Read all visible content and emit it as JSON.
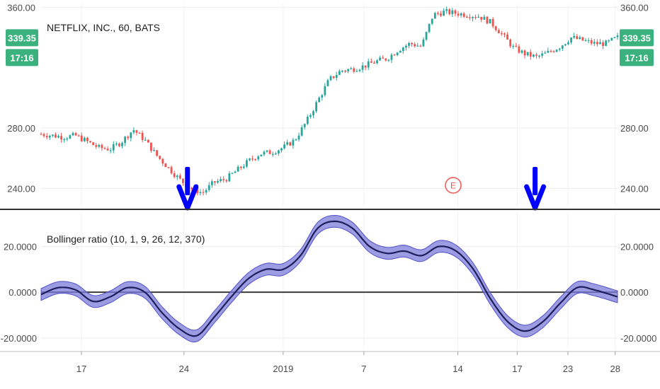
{
  "chart_data": [
    {
      "type": "candlestick",
      "title": "NETFLIX, INC., 60, BATS",
      "ylim": [
        228,
        362
      ],
      "y_ticks": [
        "360.00",
        "280.00",
        "240.00"
      ],
      "y_tick_values": [
        360,
        280,
        240
      ],
      "price_label": "339.35",
      "time_label": "17:16",
      "price_value": 339.35,
      "earnings_marker": "E",
      "colors": {
        "up": "#26a69a",
        "down": "#ef5350",
        "tag": "#3bb27d",
        "signal": "#0000ff"
      },
      "trend": {
        "x": [
          0,
          0.02,
          0.04,
          0.06,
          0.08,
          0.1,
          0.12,
          0.14,
          0.16,
          0.18,
          0.2,
          0.22,
          0.24,
          0.26,
          0.28,
          0.3,
          0.32,
          0.34,
          0.36,
          0.38,
          0.4,
          0.42,
          0.44,
          0.46,
          0.48,
          0.5,
          0.52,
          0.54,
          0.56,
          0.58,
          0.6,
          0.62,
          0.64,
          0.66,
          0.68,
          0.7,
          0.72,
          0.74,
          0.76,
          0.78,
          0.8,
          0.82,
          0.84,
          0.86,
          0.88,
          0.9,
          0.92,
          0.94,
          0.96,
          0.98,
          1.0
        ],
        "close": [
          276,
          275,
          274,
          275,
          271,
          267,
          266,
          271,
          279,
          272,
          262,
          254,
          246,
          240,
          237,
          244,
          246,
          252,
          258,
          263,
          264,
          267,
          272,
          284,
          298,
          312,
          318,
          319,
          321,
          324,
          326,
          332,
          336,
          334,
          355,
          357,
          356,
          355,
          354,
          350,
          342,
          333,
          329,
          327,
          330,
          334,
          340,
          338,
          336,
          336,
          340
        ]
      },
      "signal_arrows": [
        {
          "x": 0.254
        },
        {
          "x": 0.857
        }
      ]
    },
    {
      "type": "line",
      "title": "Bollinger ratio (10, 1, 9, 26, 12, 370)",
      "ylim": [
        -25,
        35
      ],
      "y_ticks": [
        "20.0000",
        "0.0000",
        "-20.0000"
      ],
      "y_tick_values": [
        20,
        0,
        -20
      ],
      "band_width": 2.6,
      "colors": {
        "line": "#1e1e5c",
        "band_fill": "#7b7bd9",
        "band_stroke": "#5050c8",
        "zero": "#3a3a3a"
      },
      "series": [
        {
          "x": [
            0,
            0.03,
            0.06,
            0.09,
            0.12,
            0.15,
            0.18,
            0.21,
            0.24,
            0.27,
            0.3,
            0.33,
            0.36,
            0.39,
            0.42,
            0.45,
            0.48,
            0.51,
            0.54,
            0.57,
            0.6,
            0.63,
            0.66,
            0.69,
            0.72,
            0.75,
            0.78,
            0.81,
            0.84,
            0.87,
            0.9,
            0.93,
            0.96,
            1.0
          ],
          "values": [
            -1,
            2,
            1,
            -4,
            -2,
            2,
            0,
            -9,
            -16,
            -19,
            -11,
            -2,
            6,
            10,
            10,
            16,
            28,
            31,
            28,
            20,
            17,
            18,
            16,
            20,
            18,
            10,
            -3,
            -13,
            -17,
            -13,
            -5,
            2,
            1,
            -2
          ]
        }
      ]
    }
  ],
  "x_axis": {
    "ticks": [
      "17",
      "24",
      "2019",
      "7",
      "14",
      "17",
      "23",
      "28"
    ],
    "tick_positions": [
      0.07,
      0.248,
      0.42,
      0.56,
      0.723,
      0.826,
      0.914,
      0.996
    ]
  }
}
